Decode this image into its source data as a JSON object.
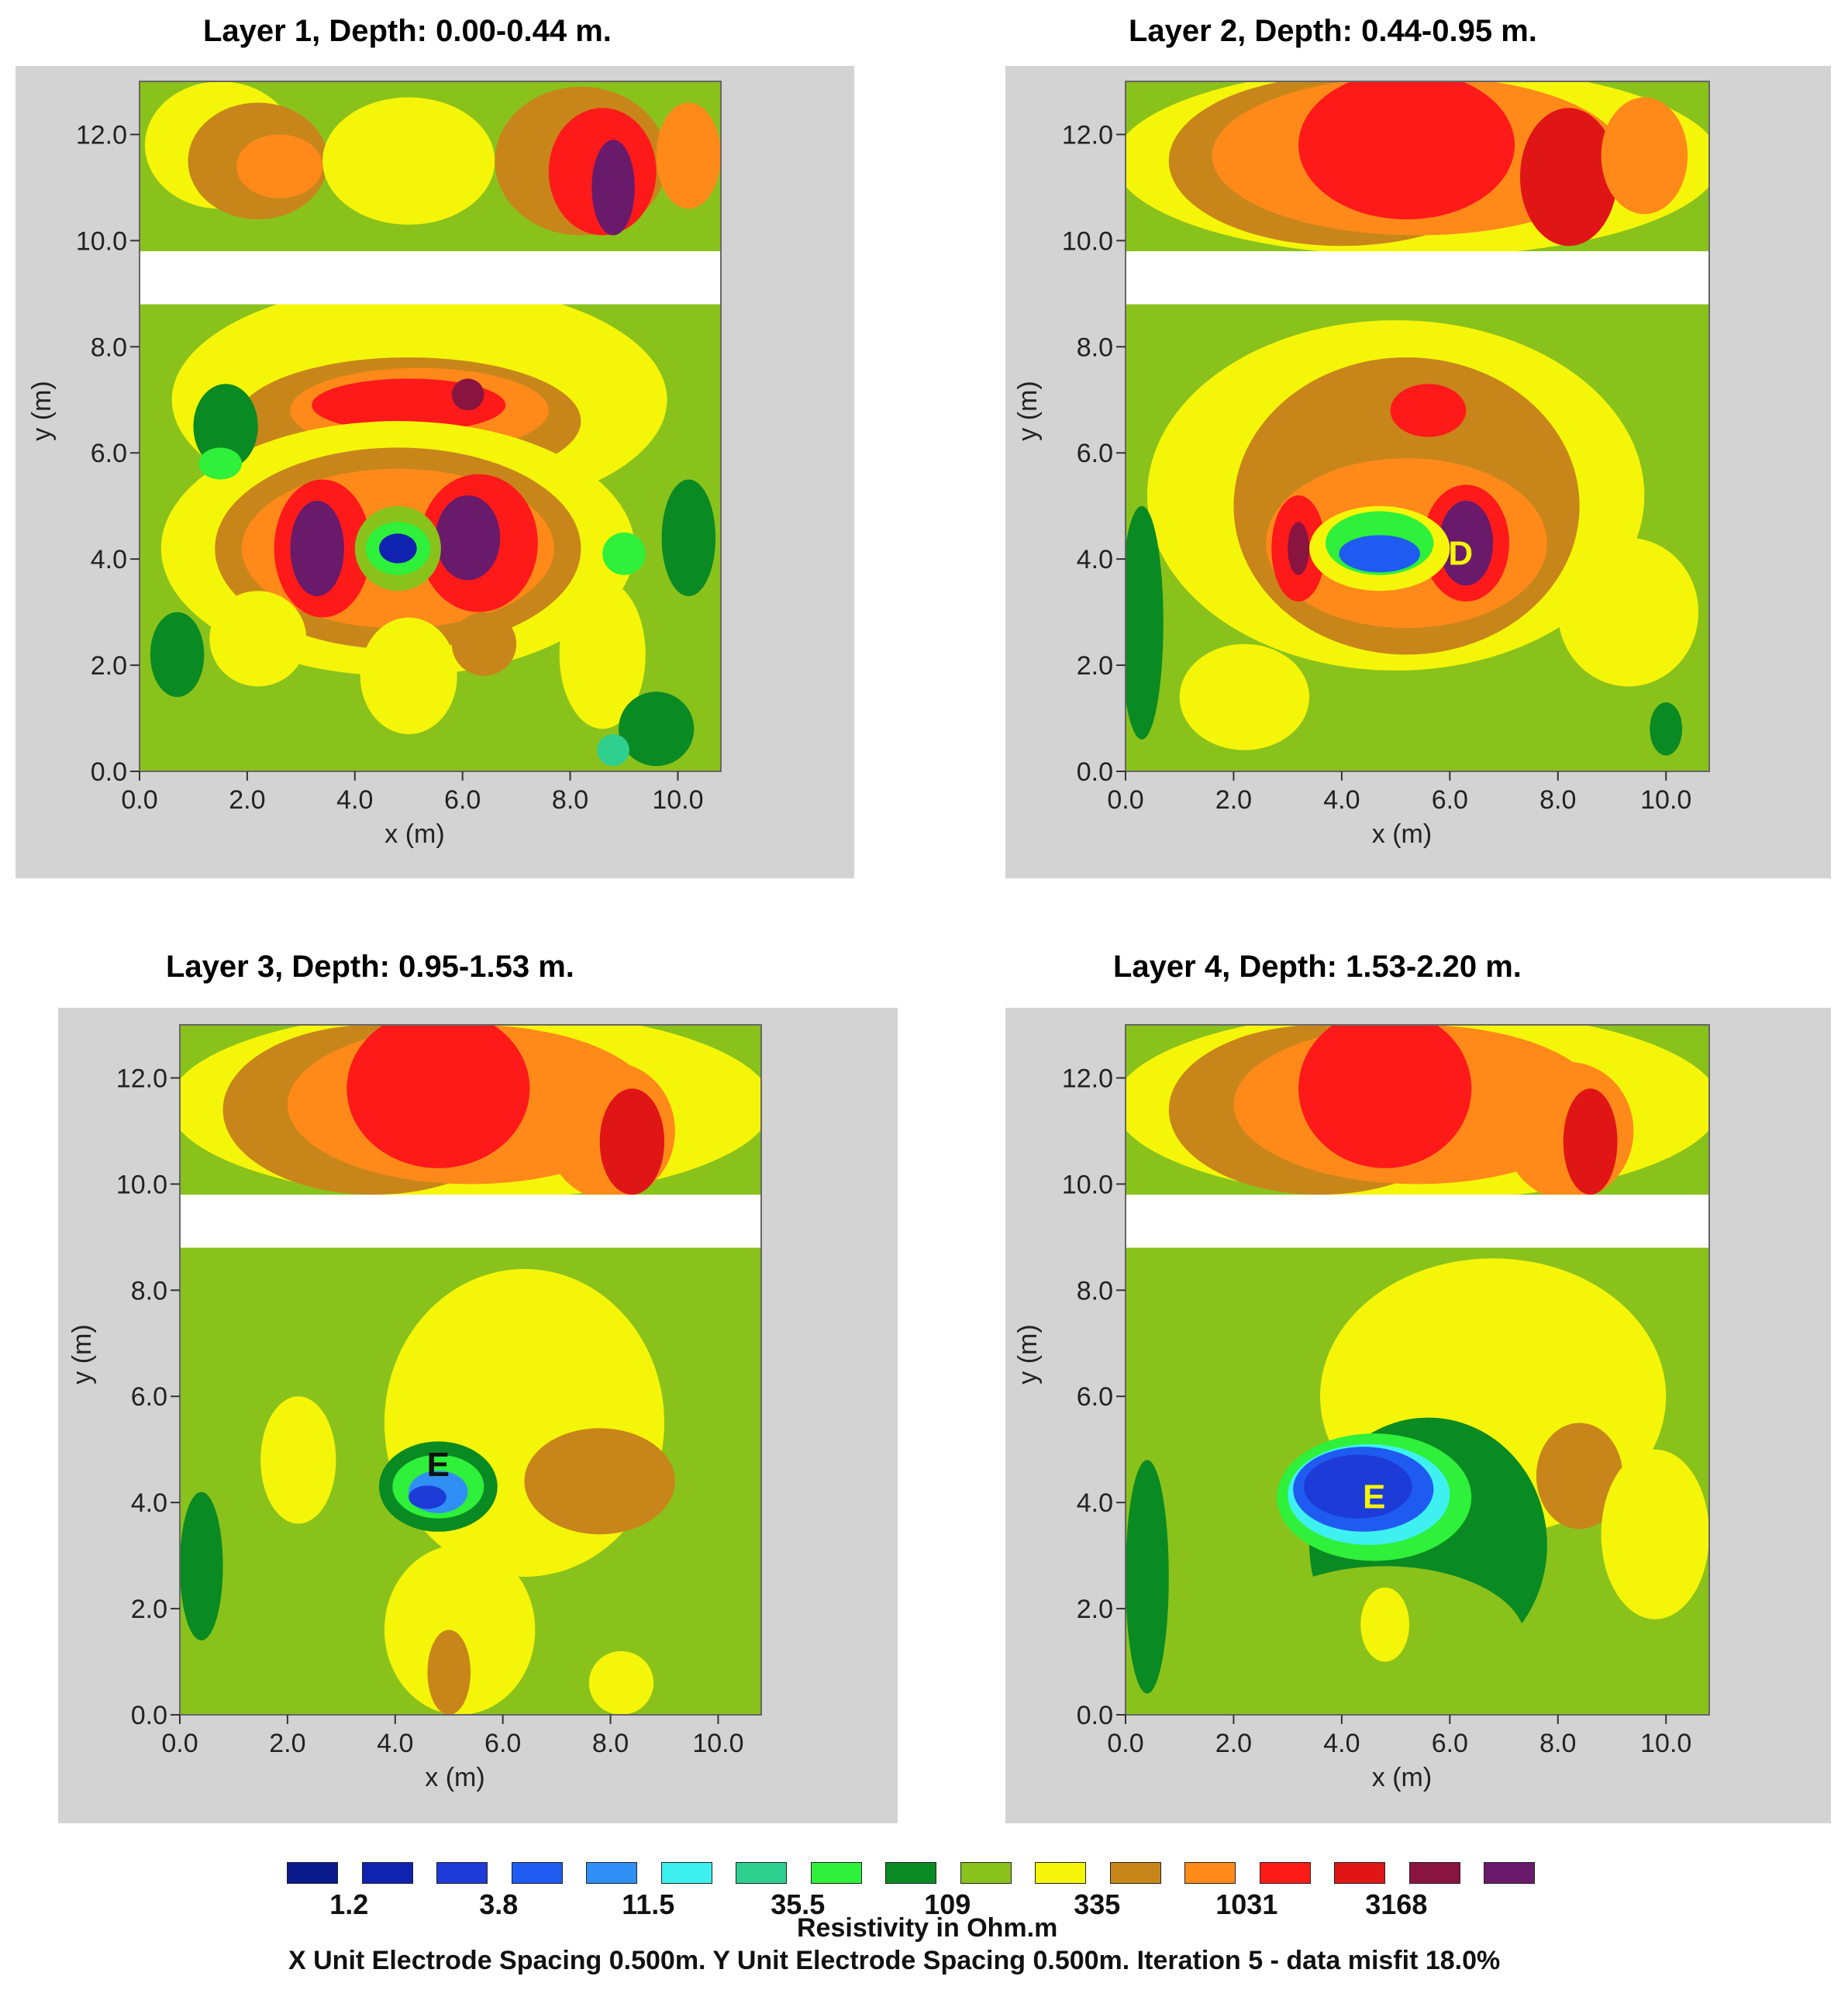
{
  "palette": {
    "c0": "#0a1a8c",
    "c1": "#1022b0",
    "c2": "#1d3bd6",
    "c3": "#1f5bf0",
    "c4": "#2f8ff5",
    "c5": "#3ff0f0",
    "c6": "#2fcf8f",
    "c7": "#2ff03a",
    "c8": "#0a8a22",
    "c9": "#8ac21c",
    "c10": "#f5f50a",
    "c11": "#c8861a",
    "c12": "#ff8a1a",
    "c13": "#ff1a1a",
    "c14": "#e01515",
    "c15": "#8a1440",
    "c16": "#6a1a6a",
    "gap": "#ffffff",
    "panel_bg": "#d3d3d3"
  },
  "chart_data": [
    {
      "type": "heatmap",
      "title": "Layer 1, Depth: 0.00-0.44 m.",
      "xlabel": "x (m)",
      "ylabel": "y (m)",
      "xlim": [
        0,
        10.8
      ],
      "ylim": [
        0,
        13
      ],
      "xticks": [
        "0.0",
        "2.0",
        "4.0",
        "6.0",
        "8.0",
        "10.0"
      ],
      "yticks": [
        "0.0",
        "2.0",
        "4.0",
        "6.0",
        "8.0",
        "10.0",
        "12.0"
      ],
      "gap_y": [
        8.8,
        9.8
      ],
      "background_class": "c9",
      "annotations": [],
      "regions": [
        {
          "cls": "c10",
          "cx": 1.5,
          "cy": 11.8,
          "rx": 1.4,
          "ry": 1.2
        },
        {
          "cls": "c11",
          "cx": 2.2,
          "cy": 11.5,
          "rx": 1.3,
          "ry": 1.1
        },
        {
          "cls": "c12",
          "cx": 2.6,
          "cy": 11.4,
          "rx": 0.8,
          "ry": 0.6
        },
        {
          "cls": "c10",
          "cx": 5.0,
          "cy": 11.5,
          "rx": 1.6,
          "ry": 1.2
        },
        {
          "cls": "c11",
          "cx": 8.2,
          "cy": 11.5,
          "rx": 1.6,
          "ry": 1.4
        },
        {
          "cls": "c13",
          "cx": 8.6,
          "cy": 11.3,
          "rx": 1.0,
          "ry": 1.2
        },
        {
          "cls": "c16",
          "cx": 8.8,
          "cy": 11.0,
          "rx": 0.4,
          "ry": 0.9
        },
        {
          "cls": "c12",
          "cx": 10.2,
          "cy": 11.6,
          "rx": 0.6,
          "ry": 1.0
        },
        {
          "cls": "c10",
          "cx": 5.2,
          "cy": 7.0,
          "rx": 4.6,
          "ry": 2.2
        },
        {
          "cls": "c11",
          "cx": 5.0,
          "cy": 6.6,
          "rx": 3.2,
          "ry": 1.2
        },
        {
          "cls": "c12",
          "cx": 5.2,
          "cy": 6.8,
          "rx": 2.4,
          "ry": 0.8
        },
        {
          "cls": "c13",
          "cx": 5.0,
          "cy": 6.9,
          "rx": 1.8,
          "ry": 0.5
        },
        {
          "cls": "c15",
          "cx": 6.1,
          "cy": 7.1,
          "rx": 0.3,
          "ry": 0.3
        },
        {
          "cls": "c10",
          "cx": 4.8,
          "cy": 4.2,
          "rx": 4.4,
          "ry": 2.4
        },
        {
          "cls": "c11",
          "cx": 4.8,
          "cy": 4.2,
          "rx": 3.4,
          "ry": 1.9
        },
        {
          "cls": "c12",
          "cx": 4.8,
          "cy": 4.2,
          "rx": 2.9,
          "ry": 1.5
        },
        {
          "cls": "c13",
          "cx": 3.4,
          "cy": 4.2,
          "rx": 0.9,
          "ry": 1.3
        },
        {
          "cls": "c16",
          "cx": 3.3,
          "cy": 4.2,
          "rx": 0.5,
          "ry": 0.9
        },
        {
          "cls": "c13",
          "cx": 6.3,
          "cy": 4.3,
          "rx": 1.1,
          "ry": 1.3
        },
        {
          "cls": "c16",
          "cx": 6.1,
          "cy": 4.4,
          "rx": 0.6,
          "ry": 0.8
        },
        {
          "cls": "c9",
          "cx": 4.8,
          "cy": 4.2,
          "rx": 0.8,
          "ry": 0.8
        },
        {
          "cls": "c7",
          "cx": 4.8,
          "cy": 4.2,
          "rx": 0.6,
          "ry": 0.5
        },
        {
          "cls": "c1",
          "cx": 4.8,
          "cy": 4.2,
          "rx": 0.35,
          "ry": 0.28
        },
        {
          "cls": "c8",
          "cx": 1.6,
          "cy": 6.5,
          "rx": 0.6,
          "ry": 0.8
        },
        {
          "cls": "c7",
          "cx": 1.5,
          "cy": 5.8,
          "rx": 0.4,
          "ry": 0.3
        },
        {
          "cls": "c8",
          "cx": 10.2,
          "cy": 4.4,
          "rx": 0.5,
          "ry": 1.1
        },
        {
          "cls": "c7",
          "cx": 9.0,
          "cy": 4.1,
          "rx": 0.4,
          "ry": 0.4
        },
        {
          "cls": "c8",
          "cx": 0.7,
          "cy": 2.2,
          "rx": 0.5,
          "ry": 0.8
        },
        {
          "cls": "c10",
          "cx": 2.2,
          "cy": 2.5,
          "rx": 0.9,
          "ry": 0.9
        },
        {
          "cls": "c10",
          "cx": 5.0,
          "cy": 1.8,
          "rx": 0.9,
          "ry": 1.1
        },
        {
          "cls": "c11",
          "cx": 6.4,
          "cy": 2.4,
          "rx": 0.6,
          "ry": 0.6
        },
        {
          "cls": "c10",
          "cx": 8.6,
          "cy": 2.2,
          "rx": 0.8,
          "ry": 1.4
        },
        {
          "cls": "c8",
          "cx": 9.6,
          "cy": 0.8,
          "rx": 0.7,
          "ry": 0.7
        },
        {
          "cls": "c6",
          "cx": 8.8,
          "cy": 0.4,
          "rx": 0.3,
          "ry": 0.3
        }
      ]
    },
    {
      "type": "heatmap",
      "title": "Layer 2, Depth: 0.44-0.95 m.",
      "xlabel": "x (m)",
      "ylabel": "y (m)",
      "xlim": [
        0,
        10.8
      ],
      "ylim": [
        0,
        13
      ],
      "xticks": [
        "0.0",
        "2.0",
        "4.0",
        "6.0",
        "8.0",
        "10.0"
      ],
      "yticks": [
        "0.0",
        "2.0",
        "4.0",
        "6.0",
        "8.0",
        "10.0",
        "12.0"
      ],
      "gap_y": [
        8.8,
        9.8
      ],
      "background_class": "c9",
      "annotations": [
        {
          "text": "D",
          "x": 6.2,
          "y": 4.1,
          "color": "#f5f50a"
        }
      ],
      "regions": [
        {
          "cls": "c10",
          "cx": 5.4,
          "cy": 11.5,
          "rx": 5.6,
          "ry": 1.8
        },
        {
          "cls": "c11",
          "cx": 4.0,
          "cy": 11.5,
          "rx": 3.2,
          "ry": 1.6
        },
        {
          "cls": "c12",
          "cx": 5.4,
          "cy": 11.6,
          "rx": 3.8,
          "ry": 1.5
        },
        {
          "cls": "c13",
          "cx": 5.2,
          "cy": 11.8,
          "rx": 2.0,
          "ry": 1.4
        },
        {
          "cls": "c14",
          "cx": 8.2,
          "cy": 11.2,
          "rx": 0.9,
          "ry": 1.3
        },
        {
          "cls": "c12",
          "cx": 9.6,
          "cy": 11.6,
          "rx": 0.8,
          "ry": 1.1
        },
        {
          "cls": "c10",
          "cx": 5.0,
          "cy": 5.2,
          "rx": 4.6,
          "ry": 3.3
        },
        {
          "cls": "c11",
          "cx": 5.2,
          "cy": 5.0,
          "rx": 3.2,
          "ry": 2.8
        },
        {
          "cls": "c12",
          "cx": 5.2,
          "cy": 4.3,
          "rx": 2.6,
          "ry": 1.6
        },
        {
          "cls": "c13",
          "cx": 5.6,
          "cy": 6.8,
          "rx": 0.7,
          "ry": 0.5
        },
        {
          "cls": "c13",
          "cx": 3.2,
          "cy": 4.2,
          "rx": 0.5,
          "ry": 1.0
        },
        {
          "cls": "c15",
          "cx": 3.2,
          "cy": 4.2,
          "rx": 0.2,
          "ry": 0.5
        },
        {
          "cls": "c13",
          "cx": 6.3,
          "cy": 4.3,
          "rx": 0.8,
          "ry": 1.1
        },
        {
          "cls": "c16",
          "cx": 6.3,
          "cy": 4.3,
          "rx": 0.5,
          "ry": 0.8
        },
        {
          "cls": "c10",
          "cx": 4.7,
          "cy": 4.2,
          "rx": 1.3,
          "ry": 0.8
        },
        {
          "cls": "c7",
          "cx": 4.7,
          "cy": 4.3,
          "rx": 1.0,
          "ry": 0.6
        },
        {
          "cls": "c3",
          "cx": 4.7,
          "cy": 4.1,
          "rx": 0.75,
          "ry": 0.35
        },
        {
          "cls": "c8",
          "cx": 0.3,
          "cy": 2.8,
          "rx": 0.4,
          "ry": 2.2
        },
        {
          "cls": "c10",
          "cx": 2.2,
          "cy": 1.4,
          "rx": 1.2,
          "ry": 1.0
        },
        {
          "cls": "c10",
          "cx": 9.3,
          "cy": 3.0,
          "rx": 1.3,
          "ry": 1.4
        },
        {
          "cls": "c8",
          "cx": 10.0,
          "cy": 0.8,
          "rx": 0.3,
          "ry": 0.5
        }
      ]
    },
    {
      "type": "heatmap",
      "title": "Layer 3, Depth: 0.95-1.53 m.",
      "xlabel": "x (m)",
      "ylabel": "y (m)",
      "xlim": [
        0,
        10.8
      ],
      "ylim": [
        0,
        13
      ],
      "xticks": [
        "0.0",
        "2.0",
        "4.0",
        "6.0",
        "8.0",
        "10.0"
      ],
      "yticks": [
        "0.0",
        "2.0",
        "4.0",
        "6.0",
        "8.0",
        "10.0",
        "12.0"
      ],
      "gap_y": [
        8.8,
        9.8
      ],
      "background_class": "c9",
      "annotations": [
        {
          "text": "E",
          "x": 4.8,
          "y": 4.7,
          "color": "#111111"
        }
      ],
      "regions": [
        {
          "cls": "c10",
          "cx": 5.4,
          "cy": 11.5,
          "rx": 5.6,
          "ry": 1.8
        },
        {
          "cls": "c11",
          "cx": 3.6,
          "cy": 11.4,
          "rx": 2.8,
          "ry": 1.6
        },
        {
          "cls": "c12",
          "cx": 5.4,
          "cy": 11.5,
          "rx": 3.4,
          "ry": 1.5
        },
        {
          "cls": "c13",
          "cx": 4.8,
          "cy": 11.8,
          "rx": 1.7,
          "ry": 1.5
        },
        {
          "cls": "c12",
          "cx": 8.0,
          "cy": 11.0,
          "rx": 1.2,
          "ry": 1.3
        },
        {
          "cls": "c14",
          "cx": 8.4,
          "cy": 10.8,
          "rx": 0.6,
          "ry": 1.0
        },
        {
          "cls": "c10",
          "cx": 6.4,
          "cy": 5.5,
          "rx": 2.6,
          "ry": 2.9
        },
        {
          "cls": "c11",
          "cx": 7.8,
          "cy": 4.4,
          "rx": 1.4,
          "ry": 1.0
        },
        {
          "cls": "c10",
          "cx": 2.2,
          "cy": 4.8,
          "rx": 0.7,
          "ry": 1.2
        },
        {
          "cls": "c10",
          "cx": 5.2,
          "cy": 1.6,
          "rx": 1.4,
          "ry": 1.6
        },
        {
          "cls": "c11",
          "cx": 5.0,
          "cy": 0.8,
          "rx": 0.4,
          "ry": 0.8
        },
        {
          "cls": "c10",
          "cx": 8.2,
          "cy": 0.6,
          "rx": 0.6,
          "ry": 0.6
        },
        {
          "cls": "c8",
          "cx": 4.8,
          "cy": 4.3,
          "rx": 1.1,
          "ry": 0.85
        },
        {
          "cls": "c7",
          "cx": 4.8,
          "cy": 4.3,
          "rx": 0.85,
          "ry": 0.6
        },
        {
          "cls": "c4",
          "cx": 4.8,
          "cy": 4.2,
          "rx": 0.55,
          "ry": 0.4
        },
        {
          "cls": "c2",
          "cx": 4.6,
          "cy": 4.1,
          "rx": 0.35,
          "ry": 0.22
        },
        {
          "cls": "c8",
          "cx": 0.4,
          "cy": 2.8,
          "rx": 0.4,
          "ry": 1.4
        }
      ]
    },
    {
      "type": "heatmap",
      "title": "Layer 4, Depth: 1.53-2.20 m.",
      "xlabel": "x (m)",
      "ylabel": "y (m)",
      "xlim": [
        0,
        10.8
      ],
      "ylim": [
        0,
        13
      ],
      "xticks": [
        "0.0",
        "2.0",
        "4.0",
        "6.0",
        "8.0",
        "10.0"
      ],
      "yticks": [
        "0.0",
        "2.0",
        "4.0",
        "6.0",
        "8.0",
        "10.0",
        "12.0"
      ],
      "gap_y": [
        8.8,
        9.8
      ],
      "background_class": "c9",
      "annotations": [
        {
          "text": "E",
          "x": 4.6,
          "y": 4.1,
          "color": "#f5f50a"
        }
      ],
      "regions": [
        {
          "cls": "c10",
          "cx": 5.4,
          "cy": 11.5,
          "rx": 5.6,
          "ry": 1.8
        },
        {
          "cls": "c11",
          "cx": 3.6,
          "cy": 11.4,
          "rx": 2.8,
          "ry": 1.6
        },
        {
          "cls": "c12",
          "cx": 5.4,
          "cy": 11.5,
          "rx": 3.4,
          "ry": 1.5
        },
        {
          "cls": "c13",
          "cx": 4.8,
          "cy": 11.8,
          "rx": 1.6,
          "ry": 1.5
        },
        {
          "cls": "c12",
          "cx": 8.2,
          "cy": 11.0,
          "rx": 1.2,
          "ry": 1.3
        },
        {
          "cls": "c14",
          "cx": 8.6,
          "cy": 10.8,
          "rx": 0.5,
          "ry": 1.0
        },
        {
          "cls": "c10",
          "cx": 6.8,
          "cy": 6.0,
          "rx": 3.2,
          "ry": 2.6
        },
        {
          "cls": "c11",
          "cx": 8.4,
          "cy": 4.5,
          "rx": 0.8,
          "ry": 1.0
        },
        {
          "cls": "c10",
          "cx": 9.8,
          "cy": 3.4,
          "rx": 1.0,
          "ry": 1.6
        },
        {
          "cls": "c8",
          "cx": 5.6,
          "cy": 3.2,
          "rx": 2.2,
          "ry": 2.4
        },
        {
          "cls": "c8",
          "cx": 0.4,
          "cy": 2.6,
          "rx": 0.4,
          "ry": 2.2
        },
        {
          "cls": "c9",
          "cx": 4.8,
          "cy": 1.4,
          "rx": 2.6,
          "ry": 1.4
        },
        {
          "cls": "c10",
          "cx": 4.8,
          "cy": 1.7,
          "rx": 0.45,
          "ry": 0.7
        },
        {
          "cls": "c7",
          "cx": 4.6,
          "cy": 4.1,
          "rx": 1.8,
          "ry": 1.2
        },
        {
          "cls": "c5",
          "cx": 4.5,
          "cy": 4.15,
          "rx": 1.5,
          "ry": 0.95
        },
        {
          "cls": "c3",
          "cx": 4.4,
          "cy": 4.25,
          "rx": 1.3,
          "ry": 0.8
        },
        {
          "cls": "c2",
          "cx": 4.3,
          "cy": 4.3,
          "rx": 1.0,
          "ry": 0.6
        }
      ]
    }
  ],
  "legend": {
    "swatches": [
      "c0",
      "c1",
      "c2",
      "c3",
      "c4",
      "c5",
      "c6",
      "c7",
      "c8",
      "c9",
      "c10",
      "c11",
      "c12",
      "c13",
      "c14",
      "c15",
      "c16"
    ],
    "labels": [
      {
        "text": "1.2",
        "after_swatch": 0
      },
      {
        "text": "3.8",
        "after_swatch": 2
      },
      {
        "text": "11.5",
        "after_swatch": 4
      },
      {
        "text": "35.5",
        "after_swatch": 6
      },
      {
        "text": "109",
        "after_swatch": 8
      },
      {
        "text": "335",
        "after_swatch": 10
      },
      {
        "text": "1031",
        "after_swatch": 12
      },
      {
        "text": "3168",
        "after_swatch": 14
      }
    ],
    "title": "Resistivity in Ohm.m",
    "footer": "X Unit Electrode Spacing 0.500m.  Y Unit Electrode Spacing 0.500m.    Iteration 5 - data misfit 18.0%"
  }
}
